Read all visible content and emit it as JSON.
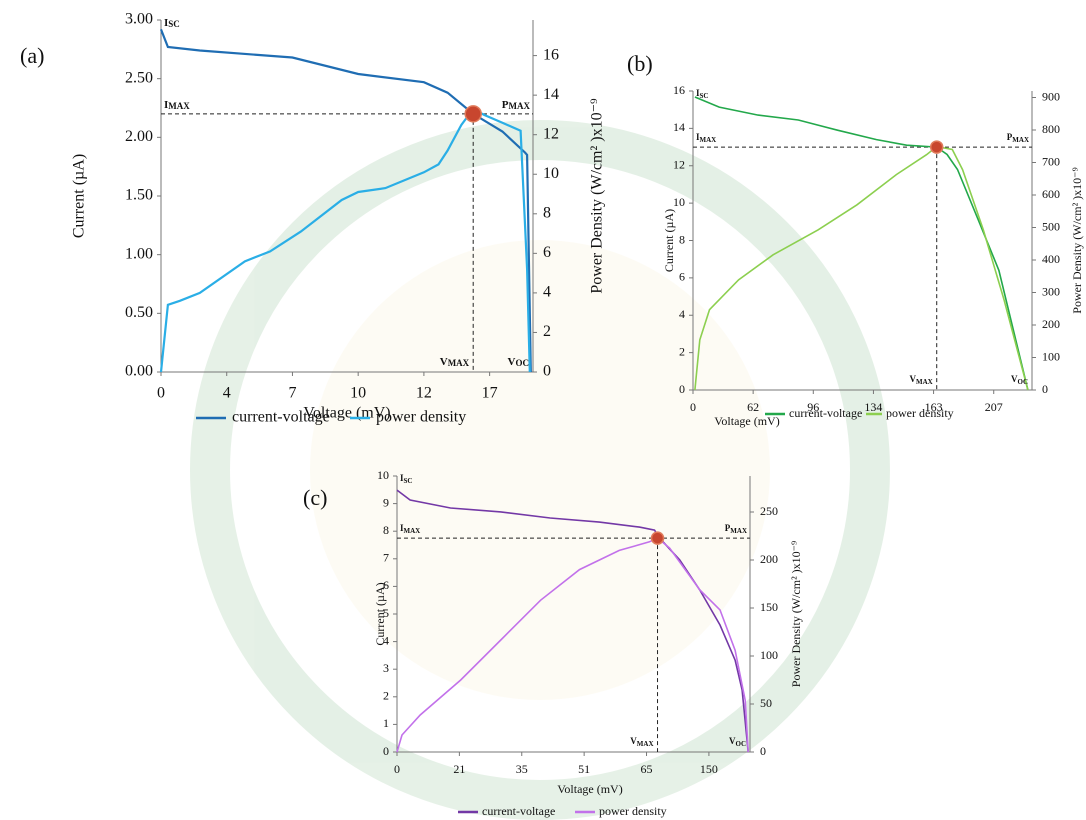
{
  "chart_data": [
    {
      "type": "line",
      "panel_label": "(a)",
      "x_label": "Voltage (mV)",
      "y_label": "Current (µA)",
      "y2_label": "Power Density (W/cm² )x10⁻⁹",
      "xlim": [
        0,
        20.3
      ],
      "xticks": [
        0,
        4,
        7,
        10,
        12,
        17
      ],
      "ylim": [
        0,
        3
      ],
      "yticks": [
        {
          "value": 0,
          "label": "0.00"
        },
        {
          "value": 0.5,
          "label": "0.50"
        },
        {
          "value": 1,
          "label": "1.00"
        },
        {
          "value": 1.5,
          "label": "1.50"
        },
        {
          "value": 2,
          "label": "2.00"
        },
        {
          "value": 2.5,
          "label": "2.50"
        },
        {
          "value": 3,
          "label": "3.00"
        }
      ],
      "y2lim": [
        0,
        17.8
      ],
      "y2ticks": [
        0,
        2,
        4,
        6,
        8,
        10,
        12,
        14,
        16
      ],
      "series": [
        {
          "name": "current-voltage",
          "color": "#1f6db3",
          "axis": "y",
          "x": [
            0,
            0.42,
            2.36,
            7,
            10,
            12,
            13.8,
            15.75,
            17.97,
            19.7,
            19.85,
            20.13
          ],
          "values": [
            2.92,
            2.77,
            2.74,
            2.68,
            2.54,
            2.47,
            2.38,
            2.2,
            2.05,
            1.87,
            1.85,
            0
          ]
        },
        {
          "name": "power density",
          "color": "#2aaee6",
          "axis": "y2",
          "x": [
            0,
            0.42,
            1.15,
            2.36,
            4.83,
            5.98,
            7.38,
            9.25,
            10,
            10.83,
            12,
            13.11,
            13.8,
            14.85,
            15.75,
            16.58,
            17.97,
            19.36,
            19.85,
            20.06
          ],
          "values": [
            0,
            3.4,
            3.6,
            4.0,
            5.6,
            6.1,
            7.1,
            8.7,
            9.1,
            9.3,
            10.1,
            10.5,
            11.2,
            12.5,
            13.3,
            13.0,
            12.6,
            12.2,
            5.2,
            0
          ]
        }
      ],
      "max_point": {
        "x": 15.75,
        "y": 2.2
      },
      "annotations": {
        "isc": {
          "text": "I",
          "sub": "SC"
        },
        "imax": {
          "text": "I",
          "sub": "MAX"
        },
        "pmax": {
          "text": "P",
          "sub": "MAX"
        },
        "vmax": {
          "text": "V",
          "sub": "MAX"
        },
        "voc": {
          "text": "V",
          "sub": "OC"
        }
      }
    },
    {
      "type": "line",
      "panel_label": "(b)",
      "x_label": "Voltage (mV)",
      "y_label": "Current (µA)",
      "y2_label": "Power Density (W/cm² )x10⁻⁹",
      "xlim": [
        0,
        235
      ],
      "xticks": [
        0,
        62,
        96,
        134,
        163,
        207
      ],
      "ylim": [
        0,
        16
      ],
      "yticks": [
        0,
        2,
        4,
        6,
        8,
        10,
        12,
        14,
        16
      ],
      "y2lim": [
        0,
        920
      ],
      "y2ticks": [
        0,
        100,
        200,
        300,
        400,
        500,
        600,
        700,
        800,
        900
      ],
      "series": [
        {
          "name": "current-voltage",
          "color": "#23a84b",
          "axis": "y",
          "x": [
            2,
            27,
            64.8,
            87.5,
            111.3,
            135.5,
            150,
            165.3,
            172.9,
            180.5,
            195.7,
            210.8,
            232
          ],
          "values": [
            15.68,
            15.14,
            14.71,
            14.45,
            13.9,
            13.4,
            13.1,
            13.0,
            12.6,
            11.8,
            9.1,
            6.4,
            0
          ]
        },
        {
          "name": "power density",
          "color": "#8ccf4f",
          "axis": "y2",
          "x": [
            2,
            7,
            17,
            47,
            73.3,
            99.1,
            123.6,
            145.1,
            159.6,
            165.3,
            176.7,
            184.2,
            199.4,
            214.6,
            232
          ],
          "values": [
            0,
            154,
            247,
            339,
            416,
            493,
            570,
            663,
            724,
            749,
            740,
            678,
            493,
            277,
            0
          ]
        }
      ],
      "max_point": {
        "x": 165.3,
        "y": 13.0
      },
      "annotations": {
        "isc": {
          "text": "I",
          "sub": "SC"
        },
        "imax": {
          "text": "I",
          "sub": "MAX"
        },
        "pmax": {
          "text": "P",
          "sub": "MAX"
        },
        "vmax": {
          "text": "V",
          "sub": "MAX"
        },
        "voc": {
          "text": "V",
          "sub": "OC"
        }
      }
    },
    {
      "type": "line",
      "panel_label": "(c)",
      "x_label": "Voltage (mV)",
      "y_label": "Current (µA)",
      "y2_label": "Power Density (W/cm² )x10⁻⁹",
      "xlim": [
        0,
        206
      ],
      "xticks": [
        0,
        21,
        35,
        51,
        65,
        150
      ],
      "ylim": [
        0,
        10
      ],
      "yticks": [
        0,
        1,
        2,
        3,
        4,
        5,
        6,
        7,
        8,
        9,
        10
      ],
      "y2lim": [
        0,
        287.5
      ],
      "y2ticks": [
        0,
        50,
        100,
        150,
        200,
        250
      ],
      "series": [
        {
          "name": "current-voltage",
          "color": "#7338a6",
          "axis": "y",
          "x": [
            0,
            4.4,
            18,
            30.3,
            42.3,
            54.4,
            63.4,
            75.9,
            82.8,
            110.2,
            137.6,
            165.1,
            185.7,
            195.3,
            203.5
          ],
          "values": [
            9.49,
            9.13,
            8.84,
            8.7,
            8.48,
            8.33,
            8.15,
            8.04,
            7.75,
            6.96,
            5.87,
            4.6,
            3.33,
            2.25,
            0
          ]
        },
        {
          "name": "power density",
          "color": "#c271ea",
          "axis": "y2",
          "x": [
            0,
            1.7,
            7.8,
            21.3,
            30.3,
            39.8,
            49.8,
            58.9,
            69.1,
            80,
            96.5,
            137.6,
            165.1,
            185.7,
            199.4,
            203.5
          ],
          "values": [
            0,
            17.7,
            38.5,
            75,
            116.7,
            158,
            190,
            210,
            219,
            222.9,
            212.5,
            169,
            148,
            106,
            54,
            0
          ]
        }
      ],
      "max_point": {
        "x": 80,
        "y": 7.75
      },
      "annotations": {
        "isc": {
          "text": "I",
          "sub": "SC"
        },
        "imax": {
          "text": "I",
          "sub": "MAX"
        },
        "pmax": {
          "text": "P",
          "sub": "MAX"
        },
        "vmax": {
          "text": "V",
          "sub": "MAX"
        },
        "voc": {
          "text": "V",
          "sub": "OC"
        }
      }
    }
  ]
}
